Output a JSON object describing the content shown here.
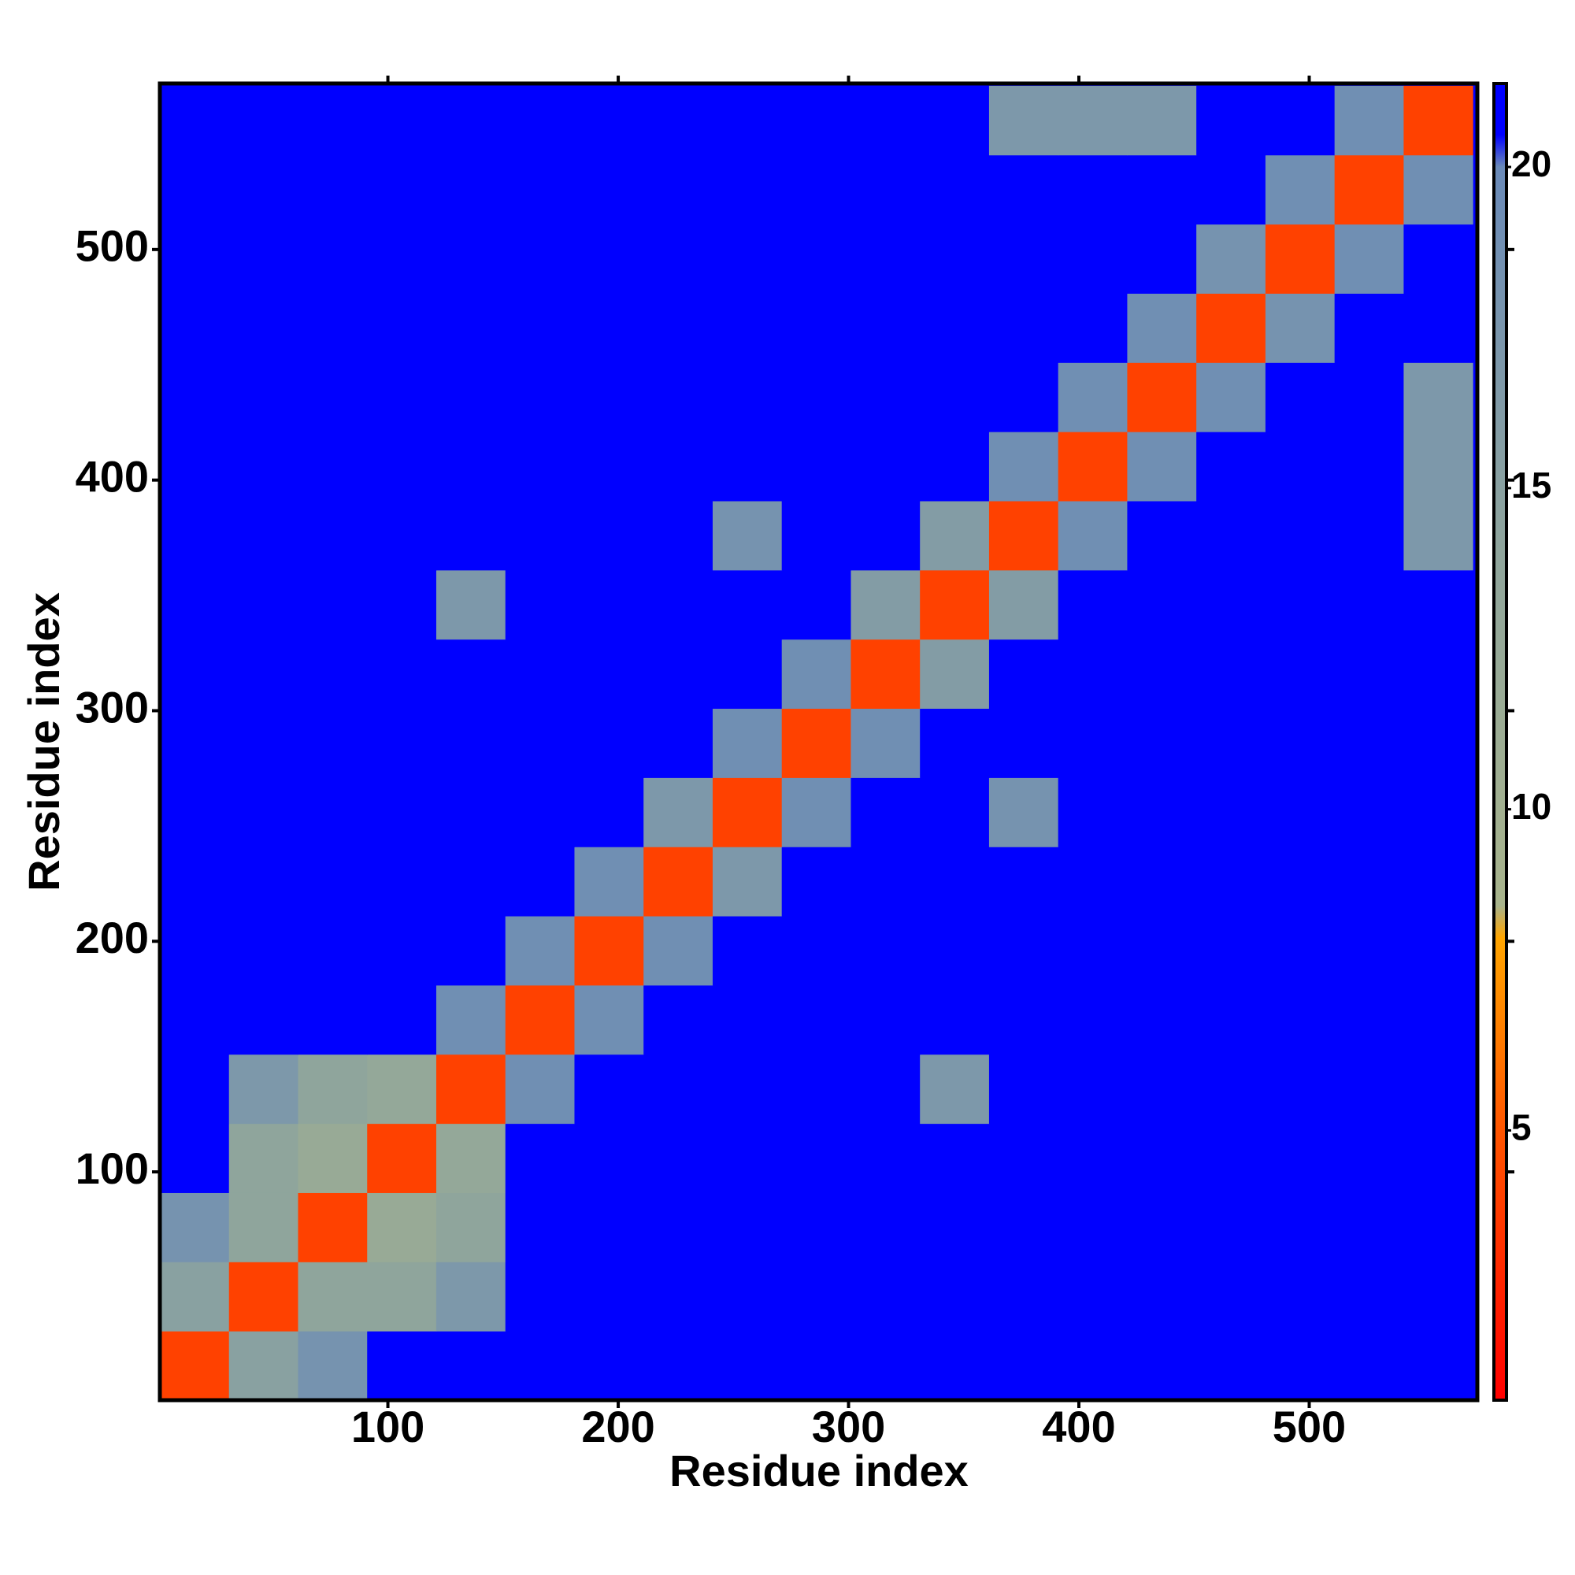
{
  "chart_data": {
    "type": "heatmap",
    "x_label": "Residue index",
    "y_label": "Residue index",
    "xlim": [
      1,
      573
    ],
    "ylim": [
      1,
      572
    ],
    "xticks": [
      100,
      200,
      300,
      400,
      500
    ],
    "yticks": [
      100,
      200,
      300,
      400,
      500
    ],
    "x_edges": [
      1,
      31,
      61,
      91,
      121,
      151,
      181,
      211,
      241,
      271,
      301,
      331,
      361,
      391,
      421,
      451,
      481,
      511,
      541,
      571
    ],
    "y_edges": [
      1,
      31,
      61,
      91,
      121,
      151,
      181,
      211,
      241,
      271,
      301,
      331,
      361,
      391,
      421,
      451,
      481,
      511,
      541,
      571
    ],
    "z": [
      [
        4,
        15,
        18,
        21,
        21,
        21,
        21,
        21,
        21,
        21,
        21,
        21,
        21,
        21,
        21,
        21,
        21,
        21,
        21
      ],
      [
        15,
        4,
        14,
        14,
        17,
        21,
        21,
        21,
        21,
        21,
        21,
        21,
        21,
        21,
        21,
        21,
        21,
        21,
        21
      ],
      [
        18,
        14,
        4,
        12,
        14,
        21,
        21,
        21,
        21,
        21,
        21,
        21,
        21,
        21,
        21,
        21,
        21,
        21,
        21
      ],
      [
        21,
        14,
        12,
        4,
        13,
        21,
        21,
        21,
        21,
        21,
        21,
        21,
        21,
        21,
        21,
        21,
        21,
        21,
        21
      ],
      [
        21,
        17,
        14,
        13,
        4,
        19,
        21,
        21,
        21,
        21,
        21,
        17,
        21,
        21,
        21,
        21,
        21,
        21,
        21
      ],
      [
        21,
        21,
        21,
        21,
        19,
        4,
        19,
        21,
        21,
        21,
        21,
        21,
        21,
        21,
        21,
        21,
        21,
        21,
        21
      ],
      [
        21,
        21,
        21,
        21,
        21,
        19,
        4,
        19,
        21,
        21,
        21,
        21,
        21,
        21,
        21,
        21,
        21,
        21,
        21
      ],
      [
        21,
        21,
        21,
        21,
        21,
        21,
        19,
        4,
        17,
        21,
        21,
        21,
        21,
        21,
        21,
        21,
        21,
        21,
        21
      ],
      [
        21,
        21,
        21,
        21,
        21,
        21,
        21,
        17,
        4,
        19,
        21,
        21,
        18,
        21,
        21,
        21,
        21,
        21,
        21
      ],
      [
        21,
        21,
        21,
        21,
        21,
        21,
        21,
        21,
        19,
        4,
        19,
        21,
        21,
        21,
        21,
        21,
        21,
        21,
        21
      ],
      [
        21,
        21,
        21,
        21,
        21,
        21,
        21,
        21,
        21,
        19,
        4,
        16,
        21,
        21,
        21,
        21,
        21,
        21,
        21
      ],
      [
        21,
        21,
        21,
        21,
        17,
        21,
        21,
        21,
        21,
        21,
        16,
        4,
        16,
        21,
        21,
        21,
        21,
        21,
        21
      ],
      [
        21,
        21,
        21,
        21,
        21,
        21,
        21,
        21,
        18,
        21,
        21,
        16,
        4,
        19,
        21,
        21,
        21,
        21,
        17
      ],
      [
        21,
        21,
        21,
        21,
        21,
        21,
        21,
        21,
        21,
        21,
        21,
        21,
        19,
        4,
        19,
        21,
        21,
        21,
        17
      ],
      [
        21,
        21,
        21,
        21,
        21,
        21,
        21,
        21,
        21,
        21,
        21,
        21,
        21,
        19,
        4,
        19,
        21,
        21,
        17
      ],
      [
        21,
        21,
        21,
        21,
        21,
        21,
        21,
        21,
        21,
        21,
        21,
        21,
        21,
        21,
        19,
        4,
        18,
        21,
        21
      ],
      [
        21,
        21,
        21,
        21,
        21,
        21,
        21,
        21,
        21,
        21,
        21,
        21,
        21,
        21,
        21,
        18,
        4,
        19,
        21
      ],
      [
        21,
        21,
        21,
        21,
        21,
        21,
        21,
        21,
        21,
        21,
        21,
        21,
        21,
        21,
        21,
        21,
        19,
        4,
        19
      ],
      [
        21,
        21,
        21,
        21,
        21,
        21,
        21,
        21,
        21,
        21,
        21,
        21,
        17,
        17,
        17,
        21,
        21,
        19,
        4
      ]
    ],
    "colorscale": [
      [
        0.8,
        "#ff0000"
      ],
      [
        5,
        "#ff5500"
      ],
      [
        8,
        "#ffa500"
      ],
      [
        8.5,
        "#a8b48c"
      ],
      [
        14,
        "#8fa59c"
      ],
      [
        20,
        "#6a8ab8"
      ],
      [
        20.5,
        "#0000ff"
      ],
      [
        21.3,
        "#0000ff"
      ]
    ],
    "clim": [
      0.8,
      21.3
    ],
    "cticks": [
      5,
      10,
      15,
      20
    ]
  }
}
